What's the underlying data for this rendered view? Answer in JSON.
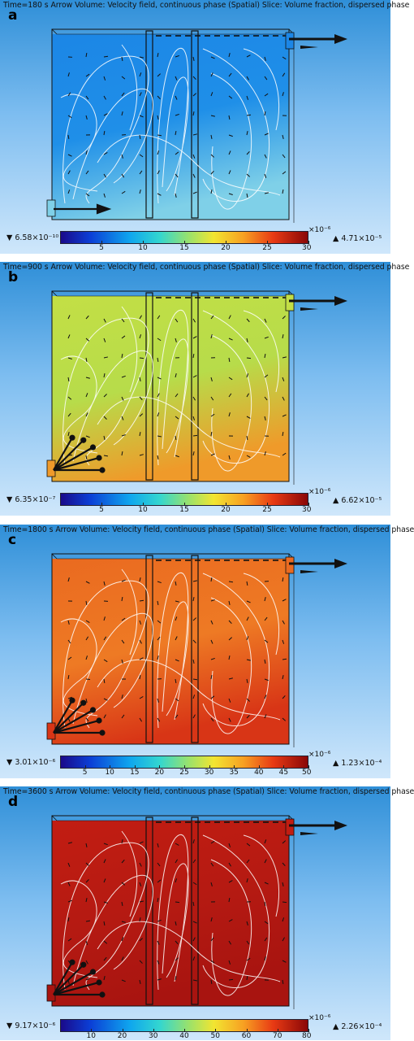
{
  "panels": [
    {
      "letter": "a",
      "caption": "Time=180 s Arrow Volume: Velocity field, continuous phase (Spatial) Slice: Volume fraction, dispersed phase",
      "min": "▼ 6.58×10⁻¹⁰",
      "max": "▲ 4.71×10⁻⁵",
      "exponent": "×10⁻⁶",
      "ticks": [
        "5",
        "10",
        "15",
        "20",
        "25",
        "30"
      ],
      "scale_max": 30,
      "fill_left": "#1f8fe8",
      "fill_right": "#1c86e6",
      "fill_bottom": "#7fd0e8"
    },
    {
      "letter": "b",
      "caption": "Time=900 s Arrow Volume: Velocity field, continuous phase (Spatial) Slice: Volume fraction, dispersed phase",
      "min": "▼ 6.35×10⁻⁷",
      "max": "▲ 6.62×10⁻⁵",
      "exponent": "×10⁻⁶",
      "ticks": [
        "5",
        "10",
        "15",
        "20",
        "25",
        "30"
      ],
      "scale_max": 30,
      "fill_left": "#b7dc4a",
      "fill_right": "#c3df45",
      "fill_bottom": "#ef9a2a"
    },
    {
      "letter": "c",
      "caption": "Time=1800 s Arrow Volume: Velocity field, continuous phase (Spatial) Slice: Volume fraction, dispersed phase",
      "min": "▼ 3.01×10⁻⁶",
      "max": "▲ 1.23×10⁻⁴",
      "exponent": "×10⁻⁶",
      "ticks": [
        "5",
        "10",
        "15",
        "20",
        "25",
        "30",
        "35",
        "40",
        "45",
        "50"
      ],
      "scale_max": 50,
      "fill_left": "#ee7a24",
      "fill_right": "#ea6a20",
      "fill_bottom": "#d83516"
    },
    {
      "letter": "d",
      "caption": "Time=3600 s Arrow Volume: Velocity field, continuous phase (Spatial) Slice: Volume fraction, dispersed phase",
      "min": "▼ 9.17×10⁻⁶",
      "max": "▲ 2.26×10⁻⁴",
      "exponent": "×10⁻⁶",
      "ticks": [
        "10",
        "20",
        "30",
        "40",
        "50",
        "60",
        "70",
        "80"
      ],
      "scale_max": 80,
      "fill_left": "#b51a12",
      "fill_right": "#c21d12",
      "fill_bottom": "#a81410"
    }
  ]
}
